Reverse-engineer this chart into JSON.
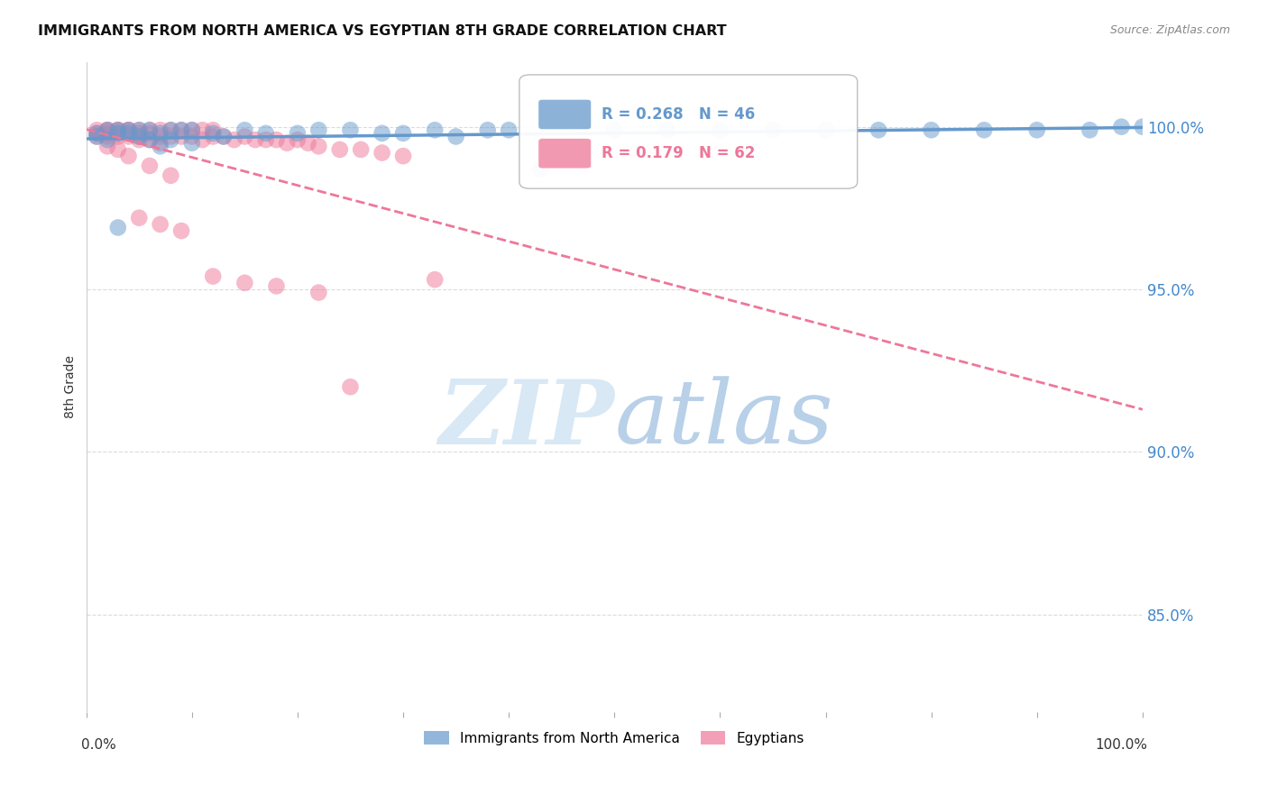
{
  "title": "IMMIGRANTS FROM NORTH AMERICA VS EGYPTIAN 8TH GRADE CORRELATION CHART",
  "source": "Source: ZipAtlas.com",
  "ylabel": "8th Grade",
  "ytick_labels": [
    "85.0%",
    "90.0%",
    "95.0%",
    "100.0%"
  ],
  "ytick_values": [
    0.85,
    0.9,
    0.95,
    1.0
  ],
  "xlim": [
    0.0,
    1.0
  ],
  "ylim": [
    0.82,
    1.02
  ],
  "legend_blue_label": "Immigrants from North America",
  "legend_pink_label": "Egyptians",
  "r_blue": 0.268,
  "n_blue": 46,
  "r_pink": 0.179,
  "n_pink": 62,
  "blue_color": "#6699CC",
  "pink_color": "#EE7799",
  "watermark_color": "#D8E8F5",
  "background_color": "#FFFFFF",
  "grid_color": "#CCCCCC",
  "blue_scatter_x": [
    0.01,
    0.01,
    0.02,
    0.02,
    0.03,
    0.03,
    0.04,
    0.04,
    0.05,
    0.05,
    0.06,
    0.06,
    0.07,
    0.07,
    0.08,
    0.08,
    0.09,
    0.1,
    0.1,
    0.12,
    0.13,
    0.15,
    0.17,
    0.2,
    0.22,
    0.25,
    0.28,
    0.3,
    0.33,
    0.35,
    0.38,
    0.4,
    0.43,
    0.5,
    0.55,
    0.6,
    0.65,
    0.7,
    0.75,
    0.8,
    0.85,
    0.9,
    0.95,
    0.98,
    1.0,
    0.03
  ],
  "blue_scatter_y": [
    0.998,
    0.997,
    0.999,
    0.996,
    0.999,
    0.998,
    0.999,
    0.998,
    0.999,
    0.997,
    0.999,
    0.996,
    0.998,
    0.994,
    0.999,
    0.996,
    0.999,
    0.999,
    0.995,
    0.998,
    0.997,
    0.999,
    0.998,
    0.998,
    0.999,
    0.999,
    0.998,
    0.998,
    0.999,
    0.997,
    0.999,
    0.999,
    0.987,
    0.999,
    0.999,
    0.999,
    0.999,
    0.999,
    0.999,
    0.999,
    0.999,
    0.999,
    0.999,
    1.0,
    1.0,
    0.969
  ],
  "pink_scatter_x": [
    0.01,
    0.01,
    0.01,
    0.02,
    0.02,
    0.02,
    0.02,
    0.03,
    0.03,
    0.03,
    0.03,
    0.04,
    0.04,
    0.04,
    0.05,
    0.05,
    0.05,
    0.05,
    0.06,
    0.06,
    0.06,
    0.07,
    0.07,
    0.07,
    0.08,
    0.08,
    0.09,
    0.09,
    0.1,
    0.1,
    0.11,
    0.11,
    0.12,
    0.12,
    0.13,
    0.14,
    0.15,
    0.16,
    0.17,
    0.18,
    0.19,
    0.2,
    0.21,
    0.22,
    0.24,
    0.26,
    0.28,
    0.3,
    0.33,
    0.05,
    0.07,
    0.09,
    0.12,
    0.15,
    0.18,
    0.22,
    0.02,
    0.03,
    0.04,
    0.06,
    0.08,
    0.25
  ],
  "pink_scatter_y": [
    0.999,
    0.998,
    0.997,
    0.999,
    0.999,
    0.998,
    0.997,
    0.999,
    0.999,
    0.998,
    0.997,
    0.999,
    0.999,
    0.997,
    0.999,
    0.998,
    0.997,
    0.996,
    0.999,
    0.998,
    0.996,
    0.999,
    0.997,
    0.995,
    0.999,
    0.997,
    0.999,
    0.997,
    0.999,
    0.997,
    0.999,
    0.996,
    0.999,
    0.997,
    0.997,
    0.996,
    0.997,
    0.996,
    0.996,
    0.996,
    0.995,
    0.996,
    0.995,
    0.994,
    0.993,
    0.993,
    0.992,
    0.991,
    0.953,
    0.972,
    0.97,
    0.968,
    0.954,
    0.952,
    0.951,
    0.949,
    0.994,
    0.993,
    0.991,
    0.988,
    0.985,
    0.92
  ]
}
